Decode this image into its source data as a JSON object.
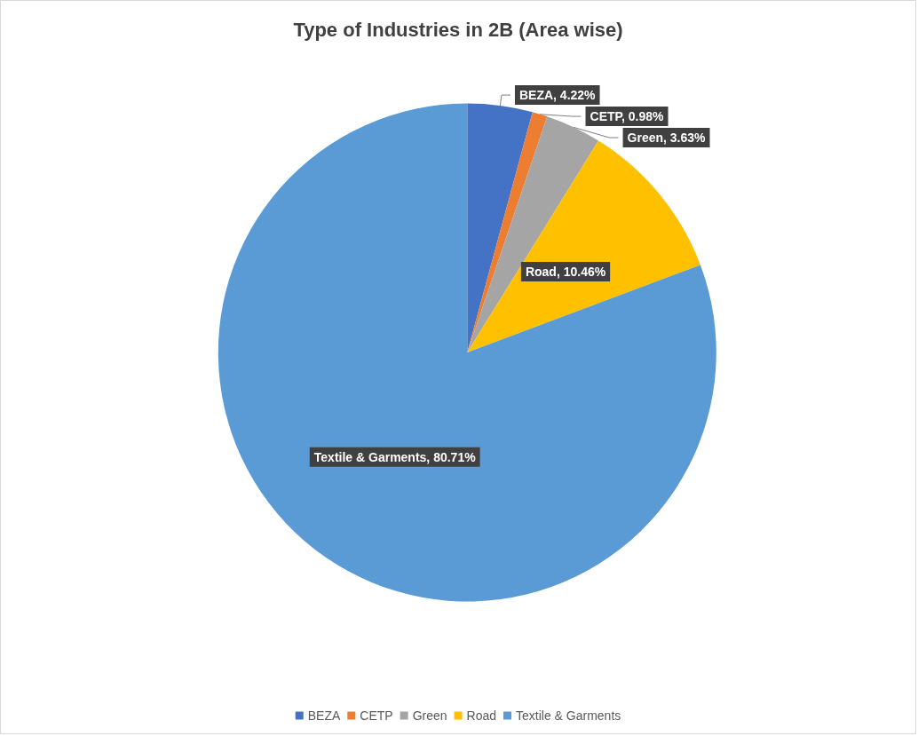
{
  "chart_data": {
    "type": "pie",
    "title": "Type of Industries in 2B (Area wise)",
    "categories": [
      "BEZA",
      "CETP",
      "Green",
      "Road",
      "Textile & Garments"
    ],
    "values": [
      4.22,
      0.98,
      3.63,
      10.46,
      80.71
    ],
    "colors": [
      "#4472c4",
      "#ed7d31",
      "#a5a5a5",
      "#ffc000",
      "#5b9bd5"
    ],
    "value_labels": [
      "BEZA, 4.22%",
      "CETP, 0.98%",
      "Green, 3.63%",
      "Road, 10.46%",
      "Textile & Garments, 80.71%"
    ],
    "legend": "bottom"
  }
}
